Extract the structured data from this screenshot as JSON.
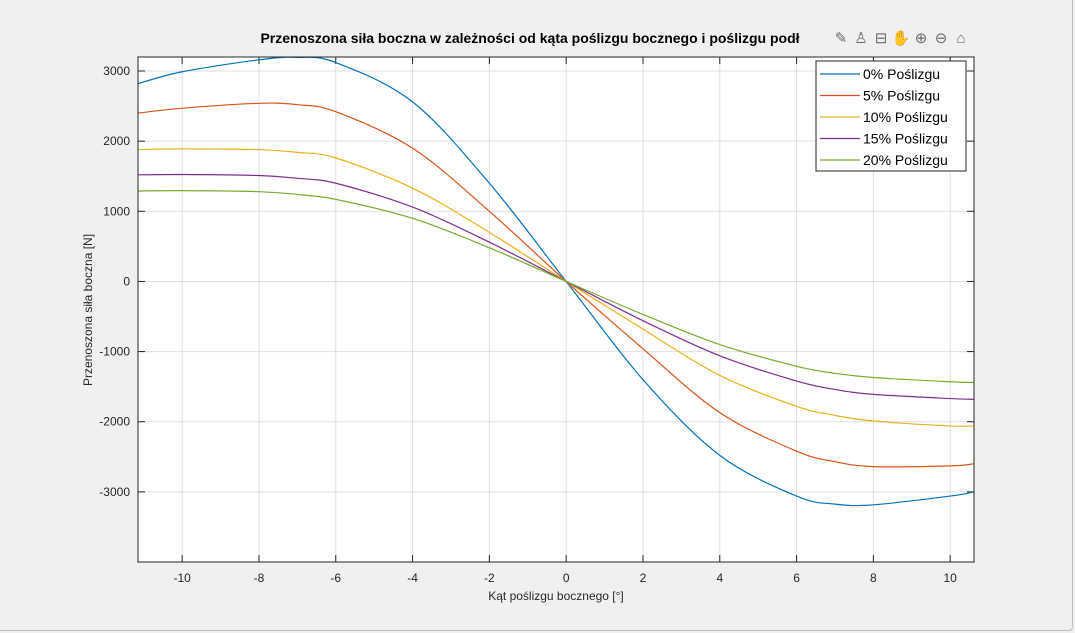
{
  "toolbar": {
    "icons": [
      "edit-brush-icon",
      "data-cursor-icon",
      "legend-icon",
      "pan-hand-icon",
      "zoom-in-icon",
      "zoom-out-icon",
      "home-icon"
    ],
    "glyphs": [
      "✎",
      "♙",
      "⊟",
      "✋",
      "⊕",
      "⊖",
      "⌂"
    ]
  },
  "chart_data": {
    "type": "line",
    "title": "Przenoszona siła boczna w zależności od kąta poślizgu bocznego i poślizgu podł",
    "xlabel": "Kąt poślizgu bocznego [°]",
    "ylabel": "Przenoszona siła boczna [N]",
    "xlim": [
      -11.15,
      10.62
    ],
    "ylim": [
      -4000,
      3200
    ],
    "xticks": [
      -10,
      -8,
      -6,
      -4,
      -2,
      0,
      2,
      4,
      6,
      8,
      10
    ],
    "xtick_labels": [
      "-10",
      "-8",
      "-6",
      "-4",
      "-2",
      "0",
      "2",
      "4",
      "6",
      "8",
      "10"
    ],
    "yticks": [
      -3000,
      -2000,
      -1000,
      0,
      1000,
      2000,
      3000
    ],
    "ytick_labels": [
      "-3000",
      "-2000",
      "-1000",
      "0",
      "1000",
      "2000",
      "3000"
    ],
    "grid": true,
    "legend_position": "top-right",
    "x": [
      -11.15,
      -10,
      -8,
      -7,
      -6,
      -4,
      -2,
      0,
      2,
      4,
      6,
      7,
      8,
      10,
      10.62
    ],
    "series": [
      {
        "name": "0% Poślizgu",
        "color": "#0072bd",
        "values": [
          2820,
          2990,
          3160,
          3195,
          3120,
          2560,
          1400,
          0,
          -1400,
          -2480,
          -3060,
          -3175,
          -3185,
          -3060,
          -3000
        ]
      },
      {
        "name": "5% Poślizgu",
        "color": "#d95319",
        "values": [
          2400,
          2470,
          2540,
          2520,
          2420,
          1900,
          1000,
          0,
          -960,
          -1870,
          -2420,
          -2570,
          -2640,
          -2630,
          -2600
        ]
      },
      {
        "name": "10% Poślizgu",
        "color": "#edb120",
        "values": [
          1880,
          1890,
          1880,
          1840,
          1760,
          1330,
          700,
          0,
          -680,
          -1340,
          -1780,
          -1910,
          -1990,
          -2060,
          -2060
        ]
      },
      {
        "name": "15% Poślizgu",
        "color": "#7e2f8e",
        "values": [
          1520,
          1525,
          1510,
          1470,
          1400,
          1060,
          560,
          0,
          -560,
          -1060,
          -1420,
          -1540,
          -1610,
          -1670,
          -1680
        ]
      },
      {
        "name": "20% Poślizgu",
        "color": "#77ac30",
        "values": [
          1290,
          1295,
          1280,
          1240,
          1170,
          900,
          480,
          0,
          -470,
          -900,
          -1210,
          -1310,
          -1370,
          -1430,
          -1440
        ]
      }
    ]
  }
}
